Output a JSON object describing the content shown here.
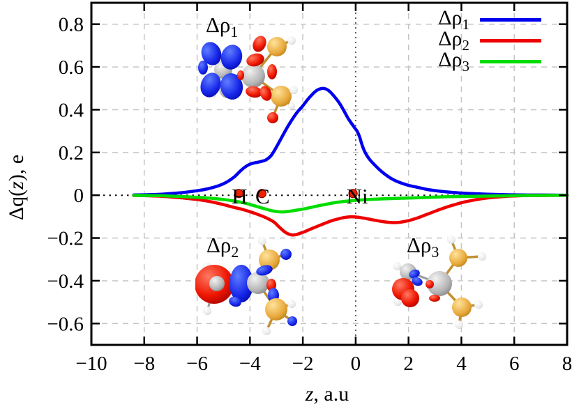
{
  "chart_data": {
    "type": "line",
    "title": "",
    "xlabel_italic": "z",
    "xlabel_rest": ", a.u",
    "ylabel_pre": "Δq(",
    "ylabel_italic": "z",
    "ylabel_post": "), e",
    "xlim": [
      -10,
      8
    ],
    "ylim": [
      -0.7,
      0.9
    ],
    "grid": true,
    "legend_position": "top-right",
    "x_ticks": [
      {
        "v": -10,
        "label": "−10"
      },
      {
        "v": -8,
        "label": "−8"
      },
      {
        "v": -6,
        "label": "−6"
      },
      {
        "v": -4,
        "label": "−4"
      },
      {
        "v": -2,
        "label": "−2"
      },
      {
        "v": 0,
        "label": "0"
      },
      {
        "v": 2,
        "label": "2"
      },
      {
        "v": 4,
        "label": "4"
      },
      {
        "v": 6,
        "label": "6"
      },
      {
        "v": 8,
        "label": "8"
      }
    ],
    "y_ticks": [
      {
        "v": 0.8,
        "label": "0.8"
      },
      {
        "v": 0.6,
        "label": "0.6"
      },
      {
        "v": 0.4,
        "label": "0.4"
      },
      {
        "v": 0.2,
        "label": "0.2"
      },
      {
        "v": 0,
        "label": "0"
      },
      {
        "v": -0.2,
        "label": "−0.2"
      },
      {
        "v": -0.4,
        "label": "−0.4"
      },
      {
        "v": -0.6,
        "label": "−0.6"
      }
    ],
    "series": [
      {
        "name": "Δρ1",
        "legend_base": "Δρ",
        "legend_sub": "1",
        "color": "#0000ee",
        "points": [
          [
            -8.4,
            0.001
          ],
          [
            -8,
            0.002
          ],
          [
            -7.5,
            0.004
          ],
          [
            -7,
            0.008
          ],
          [
            -6.5,
            0.013
          ],
          [
            -6,
            0.021
          ],
          [
            -5.6,
            0.03
          ],
          [
            -5.2,
            0.044
          ],
          [
            -4.9,
            0.06
          ],
          [
            -4.6,
            0.085
          ],
          [
            -4.35,
            0.115
          ],
          [
            -4.15,
            0.135
          ],
          [
            -4,
            0.145
          ],
          [
            -3.8,
            0.152
          ],
          [
            -3.6,
            0.157
          ],
          [
            -3.4,
            0.165
          ],
          [
            -3.2,
            0.185
          ],
          [
            -3,
            0.225
          ],
          [
            -2.8,
            0.27
          ],
          [
            -2.6,
            0.315
          ],
          [
            -2.4,
            0.355
          ],
          [
            -2.2,
            0.39
          ],
          [
            -2,
            0.418
          ],
          [
            -1.8,
            0.45
          ],
          [
            -1.6,
            0.477
          ],
          [
            -1.45,
            0.492
          ],
          [
            -1.3,
            0.499
          ],
          [
            -1.15,
            0.498
          ],
          [
            -1,
            0.487
          ],
          [
            -0.85,
            0.468
          ],
          [
            -0.7,
            0.445
          ],
          [
            -0.55,
            0.418
          ],
          [
            -0.4,
            0.385
          ],
          [
            -0.28,
            0.358
          ],
          [
            -0.18,
            0.34
          ],
          [
            -0.1,
            0.326
          ],
          [
            -0.02,
            0.312
          ],
          [
            0.06,
            0.298
          ],
          [
            0.15,
            0.272
          ],
          [
            0.25,
            0.232
          ],
          [
            0.35,
            0.202
          ],
          [
            0.5,
            0.172
          ],
          [
            0.7,
            0.144
          ],
          [
            0.95,
            0.114
          ],
          [
            1.2,
            0.09
          ],
          [
            1.45,
            0.071
          ],
          [
            1.7,
            0.058
          ],
          [
            2,
            0.046
          ],
          [
            2.3,
            0.038
          ],
          [
            2.7,
            0.027
          ],
          [
            3.1,
            0.02
          ],
          [
            3.5,
            0.015
          ],
          [
            4,
            0.01
          ],
          [
            4.5,
            0.007
          ],
          [
            5,
            0.005
          ],
          [
            5.5,
            0.003
          ],
          [
            6,
            0.002
          ],
          [
            6.5,
            0.001
          ],
          [
            7,
            0.001
          ],
          [
            8,
            0
          ]
        ]
      },
      {
        "name": "Δρ2",
        "legend_base": "Δρ",
        "legend_sub": "2",
        "color": "#ee0000",
        "points": [
          [
            -8.4,
            -0.001
          ],
          [
            -8,
            -0.002
          ],
          [
            -7.5,
            -0.004
          ],
          [
            -7,
            -0.008
          ],
          [
            -6.5,
            -0.013
          ],
          [
            -6,
            -0.02
          ],
          [
            -5.5,
            -0.03
          ],
          [
            -5,
            -0.044
          ],
          [
            -4.6,
            -0.057
          ],
          [
            -4.3,
            -0.066
          ],
          [
            -4,
            -0.077
          ],
          [
            -3.7,
            -0.09
          ],
          [
            -3.4,
            -0.105
          ],
          [
            -3.1,
            -0.125
          ],
          [
            -2.9,
            -0.148
          ],
          [
            -2.7,
            -0.17
          ],
          [
            -2.55,
            -0.181
          ],
          [
            -2.4,
            -0.186
          ],
          [
            -2.25,
            -0.184
          ],
          [
            -2.1,
            -0.178
          ],
          [
            -1.9,
            -0.169
          ],
          [
            -1.7,
            -0.158
          ],
          [
            -1.5,
            -0.148
          ],
          [
            -1.3,
            -0.138
          ],
          [
            -1.1,
            -0.128
          ],
          [
            -0.9,
            -0.119
          ],
          [
            -0.7,
            -0.112
          ],
          [
            -0.5,
            -0.106
          ],
          [
            -0.3,
            -0.102
          ],
          [
            -0.1,
            -0.101
          ],
          [
            0.1,
            -0.103
          ],
          [
            0.35,
            -0.108
          ],
          [
            0.6,
            -0.114
          ],
          [
            0.9,
            -0.121
          ],
          [
            1.2,
            -0.126
          ],
          [
            1.45,
            -0.128
          ],
          [
            1.7,
            -0.126
          ],
          [
            2,
            -0.119
          ],
          [
            2.3,
            -0.108
          ],
          [
            2.6,
            -0.094
          ],
          [
            2.9,
            -0.08
          ],
          [
            3.2,
            -0.066
          ],
          [
            3.5,
            -0.053
          ],
          [
            3.8,
            -0.042
          ],
          [
            4.1,
            -0.032
          ],
          [
            4.5,
            -0.022
          ],
          [
            4.9,
            -0.014
          ],
          [
            5.3,
            -0.009
          ],
          [
            5.7,
            -0.005
          ],
          [
            6.1,
            -0.003
          ],
          [
            6.5,
            -0.001
          ],
          [
            7,
            -0.001
          ],
          [
            8,
            0
          ]
        ]
      },
      {
        "name": "Δρ3",
        "legend_base": "Δρ",
        "legend_sub": "3",
        "color": "#00dd00",
        "points": [
          [
            -8.4,
            -0.001
          ],
          [
            -7.5,
            -0.002
          ],
          [
            -7,
            -0.004
          ],
          [
            -6.5,
            -0.007
          ],
          [
            -6,
            -0.01
          ],
          [
            -5.5,
            -0.014
          ],
          [
            -5,
            -0.02
          ],
          [
            -4.6,
            -0.027
          ],
          [
            -4.3,
            -0.034
          ],
          [
            -4,
            -0.043
          ],
          [
            -3.7,
            -0.054
          ],
          [
            -3.4,
            -0.065
          ],
          [
            -3.15,
            -0.073
          ],
          [
            -2.95,
            -0.077
          ],
          [
            -2.75,
            -0.078
          ],
          [
            -2.55,
            -0.076
          ],
          [
            -2.3,
            -0.071
          ],
          [
            -2,
            -0.065
          ],
          [
            -1.7,
            -0.057
          ],
          [
            -1.4,
            -0.049
          ],
          [
            -1.1,
            -0.042
          ],
          [
            -0.8,
            -0.035
          ],
          [
            -0.5,
            -0.03
          ],
          [
            -0.2,
            -0.026
          ],
          [
            0.1,
            -0.023
          ],
          [
            0.5,
            -0.02
          ],
          [
            1,
            -0.017
          ],
          [
            1.5,
            -0.015
          ],
          [
            2,
            -0.013
          ],
          [
            2.5,
            -0.011
          ],
          [
            3,
            -0.009
          ],
          [
            3.5,
            -0.007
          ],
          [
            4,
            -0.006
          ],
          [
            4.5,
            -0.005
          ],
          [
            5,
            -0.004
          ],
          [
            5.5,
            -0.003
          ],
          [
            6,
            -0.002
          ],
          [
            6.5,
            -0.001
          ],
          [
            7,
            -0.001
          ],
          [
            8,
            0
          ]
        ]
      }
    ],
    "atom_markers": [
      {
        "label": "H",
        "z": -4.42,
        "y": 0
      },
      {
        "label": "C",
        "z": -3.55,
        "y": 0
      },
      {
        "label": "Ni",
        "z": -0.1,
        "y": 0
      }
    ],
    "marker_color": "#ee2200"
  },
  "annotations": [
    {
      "base": "Δρ",
      "sub": "1"
    },
    {
      "base": "Δρ",
      "sub": "2"
    },
    {
      "base": "Δρ",
      "sub": "3"
    }
  ]
}
